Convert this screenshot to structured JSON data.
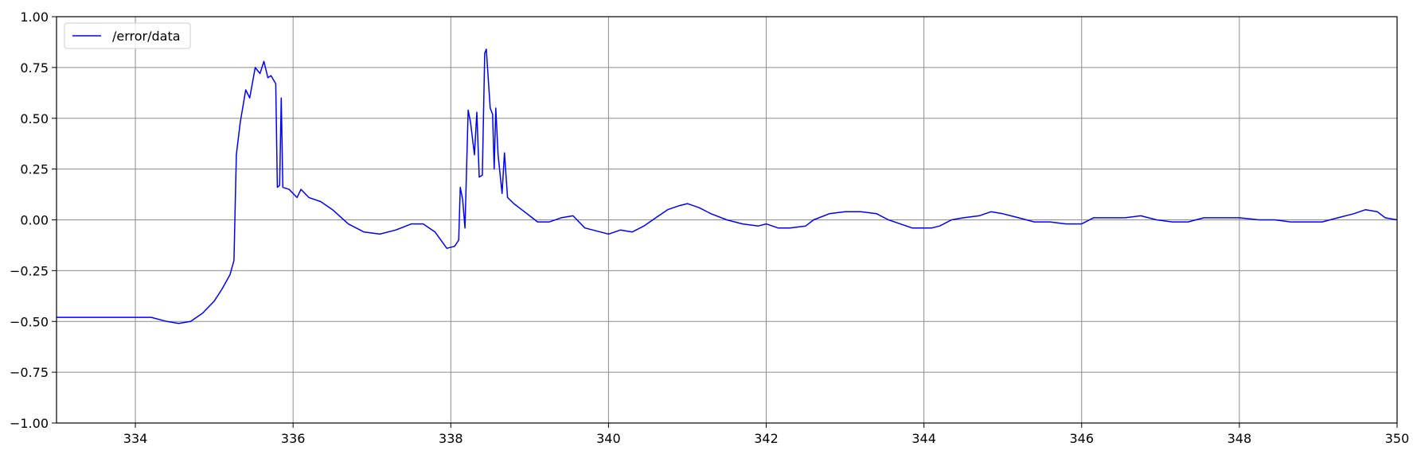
{
  "chart_data": {
    "type": "line",
    "title": "",
    "xlabel": "",
    "ylabel": "",
    "xlim": [
      333,
      350
    ],
    "ylim": [
      -1.0,
      1.0
    ],
    "grid": true,
    "legend_placement": "top-left",
    "x_tick_labels": [
      "334",
      "336",
      "338",
      "340",
      "342",
      "344",
      "346",
      "348",
      "350"
    ],
    "y_tick_labels": [
      "1.00",
      "0.75",
      "0.50",
      "0.25",
      "0.00",
      "−0.25",
      "−0.50",
      "−0.75",
      "−1.00"
    ],
    "x_ticks": [
      334,
      336,
      338,
      340,
      342,
      344,
      346,
      348,
      350
    ],
    "y_ticks": [
      1.0,
      0.75,
      0.5,
      0.25,
      0.0,
      -0.25,
      -0.5,
      -0.75,
      -1.0
    ],
    "series": [
      {
        "name": "/error/data",
        "color": "#0000ff",
        "points": [
          [
            333.0,
            -0.48
          ],
          [
            333.3,
            -0.48
          ],
          [
            333.6,
            -0.48
          ],
          [
            333.9,
            -0.48
          ],
          [
            334.0,
            -0.48
          ],
          [
            334.2,
            -0.48
          ],
          [
            334.4,
            -0.5
          ],
          [
            334.55,
            -0.51
          ],
          [
            334.7,
            -0.5
          ],
          [
            334.85,
            -0.46
          ],
          [
            335.0,
            -0.4
          ],
          [
            335.1,
            -0.34
          ],
          [
            335.2,
            -0.27
          ],
          [
            335.25,
            -0.2
          ],
          [
            335.28,
            0.32
          ],
          [
            335.33,
            0.48
          ],
          [
            335.4,
            0.64
          ],
          [
            335.45,
            0.6
          ],
          [
            335.52,
            0.75
          ],
          [
            335.58,
            0.72
          ],
          [
            335.63,
            0.78
          ],
          [
            335.68,
            0.7
          ],
          [
            335.72,
            0.71
          ],
          [
            335.78,
            0.67
          ],
          [
            335.8,
            0.16
          ],
          [
            335.83,
            0.17
          ],
          [
            335.85,
            0.6
          ],
          [
            335.87,
            0.16
          ],
          [
            335.95,
            0.15
          ],
          [
            336.05,
            0.11
          ],
          [
            336.1,
            0.15
          ],
          [
            336.2,
            0.11
          ],
          [
            336.35,
            0.09
          ],
          [
            336.5,
            0.05
          ],
          [
            336.7,
            -0.02
          ],
          [
            336.9,
            -0.06
          ],
          [
            337.1,
            -0.07
          ],
          [
            337.3,
            -0.05
          ],
          [
            337.5,
            -0.02
          ],
          [
            337.65,
            -0.02
          ],
          [
            337.8,
            -0.06
          ],
          [
            337.95,
            -0.14
          ],
          [
            338.05,
            -0.13
          ],
          [
            338.1,
            -0.1
          ],
          [
            338.12,
            0.16
          ],
          [
            338.15,
            0.1
          ],
          [
            338.18,
            -0.04
          ],
          [
            338.22,
            0.54
          ],
          [
            338.25,
            0.48
          ],
          [
            338.3,
            0.32
          ],
          [
            338.33,
            0.53
          ],
          [
            338.36,
            0.21
          ],
          [
            338.4,
            0.22
          ],
          [
            338.43,
            0.82
          ],
          [
            338.45,
            0.84
          ],
          [
            338.5,
            0.55
          ],
          [
            338.53,
            0.52
          ],
          [
            338.55,
            0.25
          ],
          [
            338.57,
            0.55
          ],
          [
            338.6,
            0.32
          ],
          [
            338.65,
            0.13
          ],
          [
            338.68,
            0.33
          ],
          [
            338.72,
            0.11
          ],
          [
            338.8,
            0.08
          ],
          [
            338.9,
            0.05
          ],
          [
            339.0,
            0.02
          ],
          [
            339.1,
            -0.01
          ],
          [
            339.25,
            -0.01
          ],
          [
            339.4,
            0.01
          ],
          [
            339.55,
            0.02
          ],
          [
            339.7,
            -0.04
          ],
          [
            339.9,
            -0.06
          ],
          [
            340.0,
            -0.07
          ],
          [
            340.15,
            -0.05
          ],
          [
            340.3,
            -0.06
          ],
          [
            340.45,
            -0.03
          ],
          [
            340.6,
            0.01
          ],
          [
            340.75,
            0.05
          ],
          [
            340.9,
            0.07
          ],
          [
            341.0,
            0.08
          ],
          [
            341.15,
            0.06
          ],
          [
            341.3,
            0.03
          ],
          [
            341.5,
            0.0
          ],
          [
            341.7,
            -0.02
          ],
          [
            341.9,
            -0.03
          ],
          [
            342.0,
            -0.02
          ],
          [
            342.15,
            -0.04
          ],
          [
            342.3,
            -0.04
          ],
          [
            342.5,
            -0.03
          ],
          [
            342.6,
            0.0
          ],
          [
            342.8,
            0.03
          ],
          [
            343.0,
            0.04
          ],
          [
            343.2,
            0.04
          ],
          [
            343.4,
            0.03
          ],
          [
            343.55,
            0.0
          ],
          [
            343.7,
            -0.02
          ],
          [
            343.85,
            -0.04
          ],
          [
            344.0,
            -0.04
          ],
          [
            344.1,
            -0.04
          ],
          [
            344.2,
            -0.03
          ],
          [
            344.35,
            0.0
          ],
          [
            344.5,
            0.01
          ],
          [
            344.7,
            0.02
          ],
          [
            344.85,
            0.04
          ],
          [
            345.0,
            0.03
          ],
          [
            345.2,
            0.01
          ],
          [
            345.4,
            -0.01
          ],
          [
            345.6,
            -0.01
          ],
          [
            345.8,
            -0.02
          ],
          [
            346.0,
            -0.02
          ],
          [
            346.15,
            0.01
          ],
          [
            346.35,
            0.01
          ],
          [
            346.55,
            0.01
          ],
          [
            346.75,
            0.02
          ],
          [
            346.95,
            0.0
          ],
          [
            347.15,
            -0.01
          ],
          [
            347.35,
            -0.01
          ],
          [
            347.55,
            0.01
          ],
          [
            347.75,
            0.01
          ],
          [
            348.0,
            0.01
          ],
          [
            348.25,
            0.0
          ],
          [
            348.45,
            0.0
          ],
          [
            348.65,
            -0.01
          ],
          [
            348.85,
            -0.01
          ],
          [
            349.05,
            -0.01
          ],
          [
            349.25,
            0.01
          ],
          [
            349.45,
            0.03
          ],
          [
            349.6,
            0.05
          ],
          [
            349.75,
            0.04
          ],
          [
            349.85,
            0.01
          ],
          [
            350.0,
            0.0
          ]
        ]
      }
    ]
  }
}
